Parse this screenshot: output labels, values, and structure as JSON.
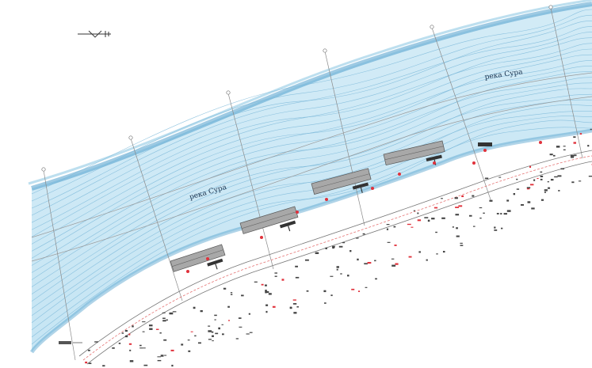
{
  "map": {
    "river_labels": [
      "река Сура",
      "река Сура"
    ],
    "legend_symbol": "north-arrow-icon",
    "colors": {
      "water": "#bfe3f2",
      "water_deep": "#5aa9d2",
      "contour": "#78b6d8",
      "grid_line": "#8a8a8a",
      "structure_fill": "#a8a8a8",
      "structure_stroke": "#555555",
      "red_marker": "#e0313b",
      "shore_line": "#e57373"
    }
  }
}
